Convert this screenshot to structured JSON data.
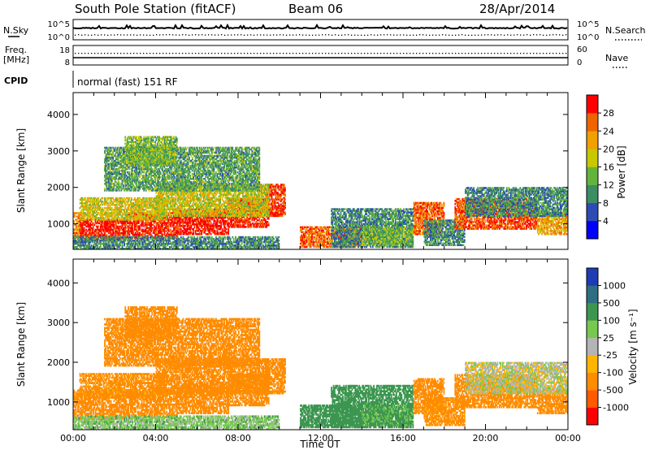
{
  "header": {
    "station": "South Pole Station (fitACF)",
    "beam": "Beam 06",
    "date": "28/Apr/2014"
  },
  "noise_panel": {
    "left_label": "N.Sky",
    "left_ticks": [
      "10^5",
      "10^0"
    ],
    "right_label": "N.Search",
    "right_ticks": [
      "10^5",
      "10^0"
    ]
  },
  "freq_panel": {
    "left_label_line1": "Freq.",
    "left_label_line2": "[MHz]",
    "left_ticks": [
      "18",
      "8"
    ],
    "right_label": "Nave",
    "right_ticks": [
      "60",
      "0"
    ]
  },
  "cpid": {
    "label": "CPID",
    "mode_text": "normal (fast) 151 RF"
  },
  "colors": {
    "power": [
      "#0000ff",
      "#2e4bb4",
      "#3c8c64",
      "#64b43c",
      "#c8c800",
      "#f0a000",
      "#f06400",
      "#ff0000"
    ],
    "velocity": [
      "#ff0000",
      "#ff5a00",
      "#ff8c00",
      "#ffb400",
      "#b4b4b4",
      "#78c850",
      "#3c9650",
      "#2e6e82",
      "#1e3cb4"
    ]
  },
  "chart_data": [
    {
      "type": "heatmap",
      "panel": "power",
      "ylabel": "Slant Range [km]",
      "ylim": [
        300,
        4600
      ],
      "yticks": [
        1000,
        2000,
        3000,
        4000
      ],
      "xlim": [
        0,
        24
      ],
      "colorbar": {
        "label": "Power [dB]",
        "range": [
          0,
          32
        ],
        "ticks": [
          "4",
          "8",
          "12",
          "16",
          "20",
          "24",
          "28"
        ]
      },
      "echo_regions": [
        {
          "t0": 0.0,
          "t1": 0.5,
          "r0": 600,
          "r1": 1300,
          "v": 24
        },
        {
          "t0": 0.3,
          "t1": 2.5,
          "r0": 550,
          "r1": 1100,
          "v": 30
        },
        {
          "t0": 2.5,
          "t1": 5.0,
          "r0": 600,
          "r1": 1300,
          "v": 30
        },
        {
          "t0": 5.0,
          "t1": 7.5,
          "r0": 700,
          "r1": 1400,
          "v": 30
        },
        {
          "t0": 7.5,
          "t1": 9.5,
          "r0": 900,
          "r1": 1700,
          "v": 29
        },
        {
          "t0": 9.3,
          "t1": 10.3,
          "r0": 1200,
          "r1": 2100,
          "v": 28
        },
        {
          "t0": 0.3,
          "t1": 4.5,
          "r0": 1100,
          "r1": 1700,
          "v": 19
        },
        {
          "t0": 4.0,
          "t1": 9.5,
          "r0": 1200,
          "r1": 2100,
          "v": 18
        },
        {
          "t0": 1.5,
          "t1": 9.0,
          "r0": 1900,
          "r1": 3100,
          "v": 12
        },
        {
          "t0": 2.5,
          "t1": 5.0,
          "r0": 2600,
          "r1": 3400,
          "v": 14
        },
        {
          "t0": 0.0,
          "t1": 10.0,
          "r0": 300,
          "r1": 650,
          "v": 10
        },
        {
          "t0": 11.0,
          "t1": 14.0,
          "r0": 350,
          "r1": 900,
          "v": 26
        },
        {
          "t0": 12.5,
          "t1": 16.5,
          "r0": 350,
          "r1": 1400,
          "v": 10
        },
        {
          "t0": 14.0,
          "t1": 16.5,
          "r0": 400,
          "r1": 900,
          "v": 14
        },
        {
          "t0": 16.5,
          "t1": 18.0,
          "r0": 700,
          "r1": 1600,
          "v": 26
        },
        {
          "t0": 17.0,
          "t1": 19.0,
          "r0": 400,
          "r1": 1100,
          "v": 10
        },
        {
          "t0": 18.5,
          "t1": 22.5,
          "r0": 850,
          "r1": 1700,
          "v": 27
        },
        {
          "t0": 22.5,
          "t1": 24.0,
          "r0": 700,
          "r1": 1300,
          "v": 22
        },
        {
          "t0": 19.0,
          "t1": 24.0,
          "r0": 1200,
          "r1": 2000,
          "v": 10
        }
      ]
    },
    {
      "type": "heatmap",
      "panel": "velocity",
      "ylabel": "Slant Range [km]",
      "xlabel": "Time UT",
      "ylim": [
        300,
        4600
      ],
      "yticks": [
        1000,
        2000,
        3000,
        4000
      ],
      "xlim": [
        0,
        24
      ],
      "xticks": [
        "00:00",
        "04:00",
        "08:00",
        "12:00",
        "16:00",
        "20:00",
        "00:00"
      ],
      "colorbar": {
        "label": "Velocity [m s⁻¹]",
        "ticks": [
          "1000",
          "500",
          "100",
          "25",
          "-25",
          "-100",
          "-500",
          "-1000"
        ]
      },
      "echo_regions": [
        {
          "t0": 0.0,
          "t1": 2.5,
          "r0": 550,
          "r1": 1300,
          "v": -250
        },
        {
          "t0": 2.5,
          "t1": 5.0,
          "r0": 600,
          "r1": 1300,
          "v": -250
        },
        {
          "t0": 5.0,
          "t1": 7.5,
          "r0": 700,
          "r1": 1400,
          "v": -300
        },
        {
          "t0": 7.5,
          "t1": 9.5,
          "r0": 900,
          "r1": 1700,
          "v": -250
        },
        {
          "t0": 9.3,
          "t1": 10.3,
          "r0": 1200,
          "r1": 2100,
          "v": -300
        },
        {
          "t0": 0.3,
          "t1": 4.5,
          "r0": 1100,
          "r1": 1700,
          "v": -150
        },
        {
          "t0": 4.0,
          "t1": 9.5,
          "r0": 1200,
          "r1": 2100,
          "v": -200
        },
        {
          "t0": 1.5,
          "t1": 9.0,
          "r0": 1900,
          "r1": 3100,
          "v": -250
        },
        {
          "t0": 2.5,
          "t1": 5.0,
          "r0": 2600,
          "r1": 3400,
          "v": -300
        },
        {
          "t0": 0.0,
          "t1": 10.0,
          "r0": 300,
          "r1": 650,
          "v": 60
        },
        {
          "t0": 11.0,
          "t1": 14.0,
          "r0": 350,
          "r1": 900,
          "v": 300
        },
        {
          "t0": 12.5,
          "t1": 16.5,
          "r0": 350,
          "r1": 1400,
          "v": 400
        },
        {
          "t0": 14.0,
          "t1": 16.5,
          "r0": 400,
          "r1": 900,
          "v": 120
        },
        {
          "t0": 16.5,
          "t1": 18.0,
          "r0": 700,
          "r1": 1600,
          "v": -250
        },
        {
          "t0": 17.0,
          "t1": 19.0,
          "r0": 400,
          "r1": 1100,
          "v": -150
        },
        {
          "t0": 18.5,
          "t1": 22.5,
          "r0": 850,
          "r1": 1700,
          "v": -300
        },
        {
          "t0": 22.5,
          "t1": 24.0,
          "r0": 700,
          "r1": 1300,
          "v": -250
        },
        {
          "t0": 19.0,
          "t1": 24.0,
          "r0": 1200,
          "r1": 2000,
          "v": 0
        }
      ]
    }
  ]
}
